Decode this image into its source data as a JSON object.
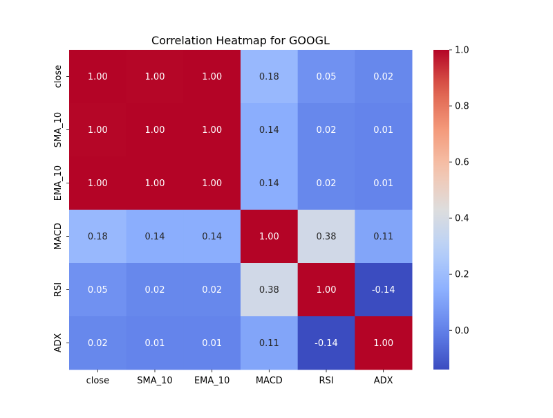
{
  "chart_data": {
    "type": "heatmap",
    "title": "Correlation Heatmap for GOOGL",
    "x_categories": [
      "close",
      "SMA_10",
      "EMA_10",
      "MACD",
      "RSI",
      "ADX"
    ],
    "y_categories": [
      "close",
      "SMA_10",
      "EMA_10",
      "MACD",
      "RSI",
      "ADX"
    ],
    "values": [
      [
        1.0,
        0.997,
        1.0,
        0.18,
        0.05,
        0.02
      ],
      [
        0.997,
        1.0,
        1.0,
        0.14,
        0.02,
        0.01
      ],
      [
        1.0,
        1.0,
        1.0,
        0.14,
        0.02,
        0.01
      ],
      [
        0.18,
        0.14,
        0.14,
        1.0,
        0.38,
        0.11
      ],
      [
        0.05,
        0.02,
        0.02,
        0.38,
        1.0,
        -0.14
      ],
      [
        0.02,
        0.01,
        0.01,
        0.11,
        -0.14,
        1.0
      ]
    ],
    "value_format_decimals": 2,
    "colormap": "coolwarm",
    "vmin": -0.14,
    "vmax": 1.0,
    "colorbar": {
      "ticks": [
        0.0,
        0.2,
        0.4,
        0.6,
        0.8,
        1.0
      ],
      "tick_labels": [
        "0.0",
        "0.2",
        "0.4",
        "0.6",
        "0.8",
        "1.0"
      ],
      "placement": "right"
    },
    "xlabel": "",
    "ylabel": ""
  }
}
